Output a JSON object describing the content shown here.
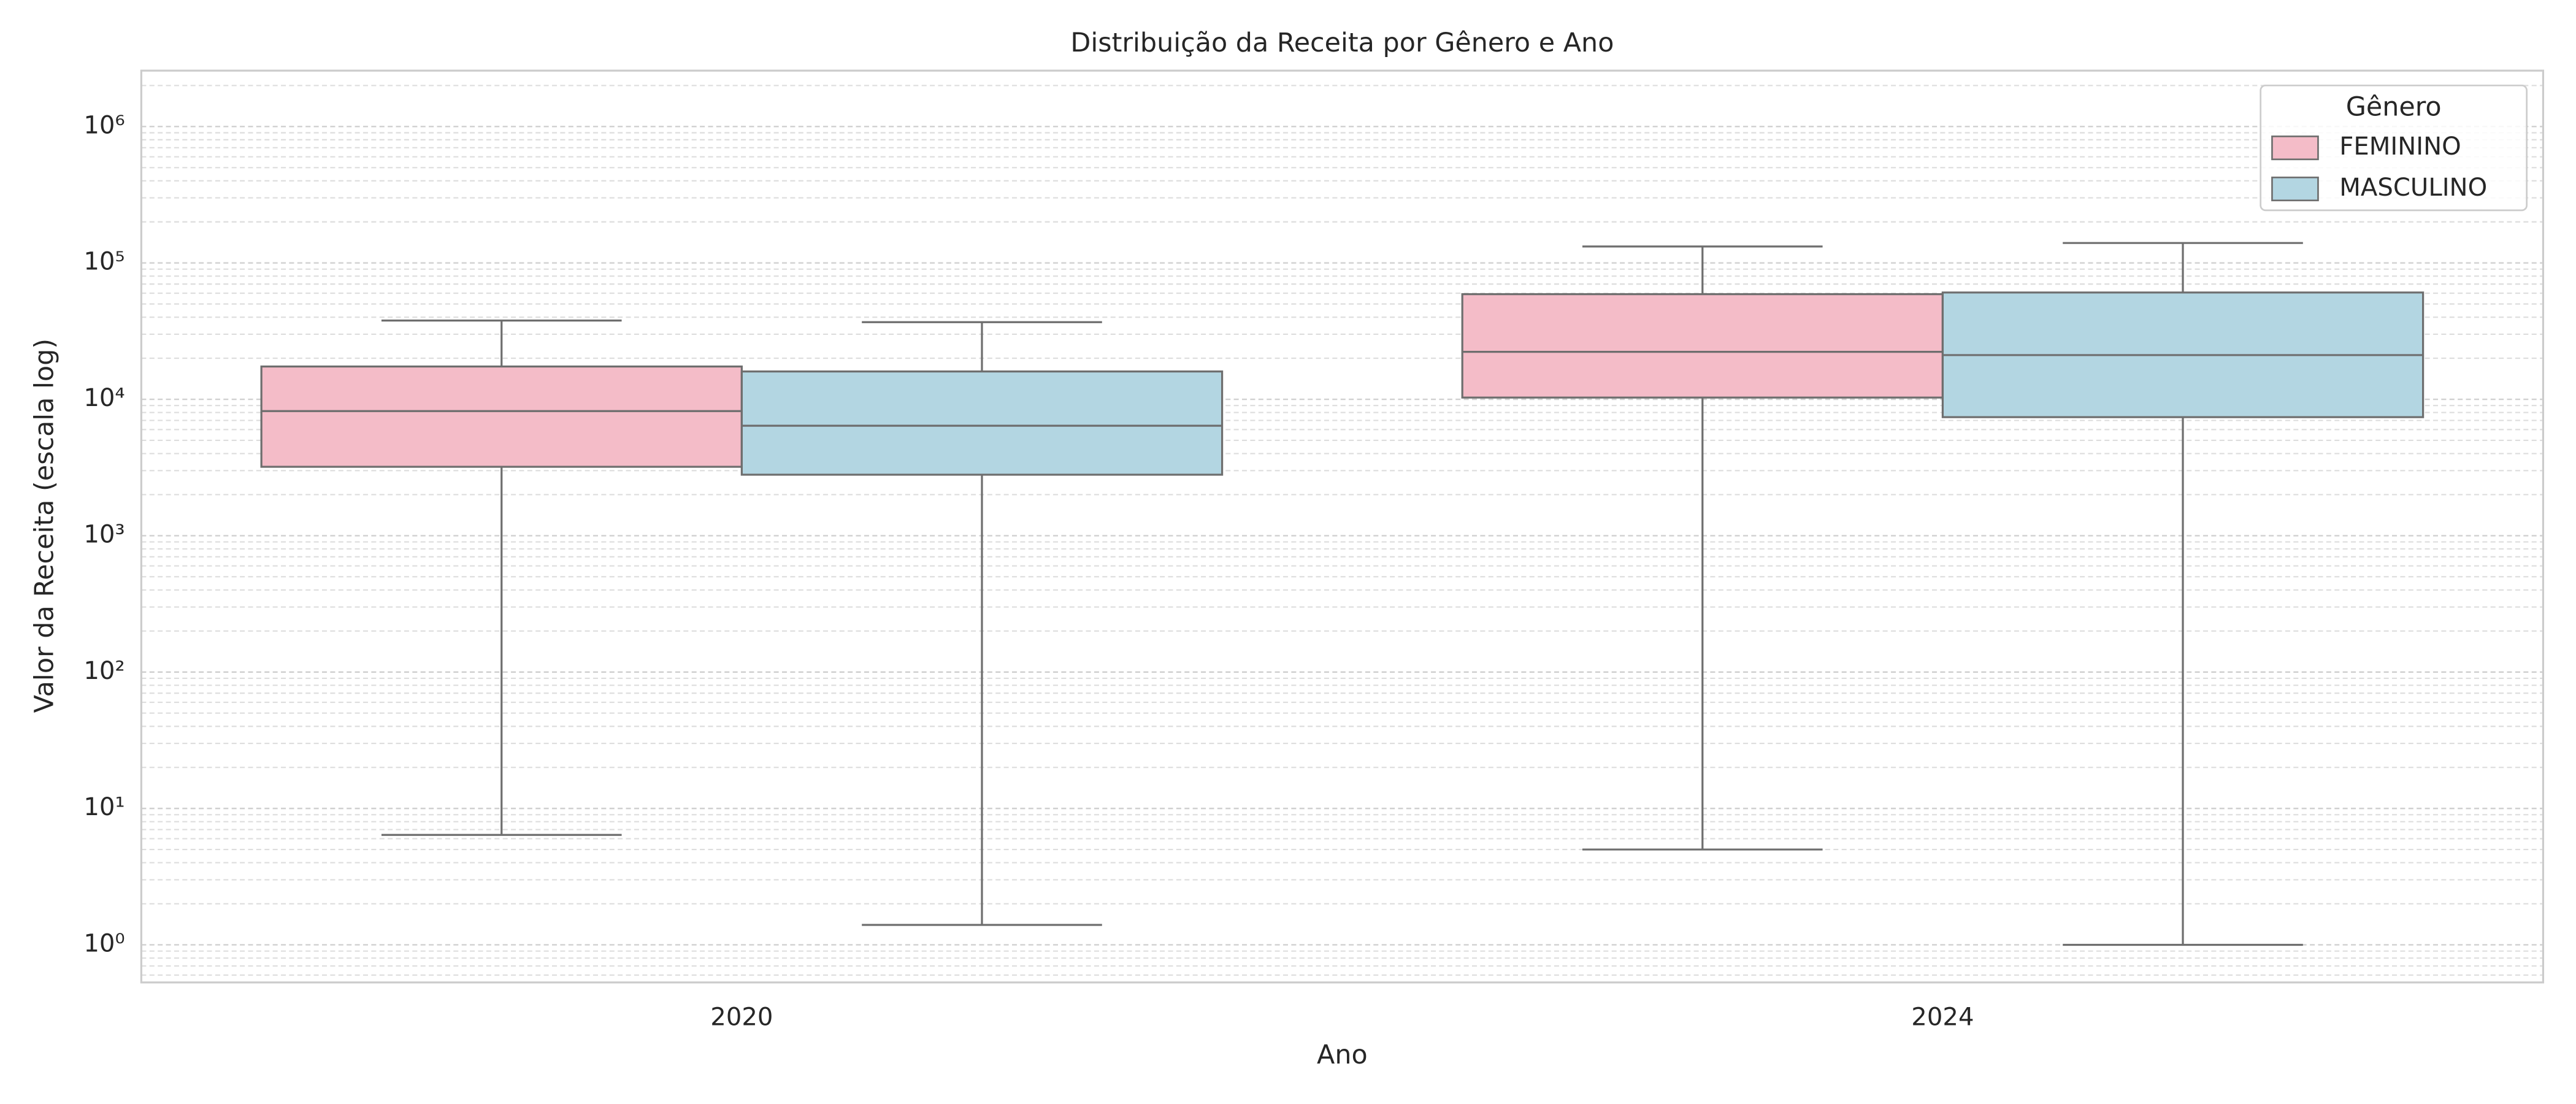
{
  "chart_data": {
    "type": "box",
    "title": "Distribuição da Receita por Gênero e Ano",
    "x_label": "Ano",
    "y_label": "Valor da Receita (escala log)",
    "categories": [
      "2020",
      "2024"
    ],
    "legend_title": "Gênero",
    "legend_loc": "upper right",
    "log_scale": true,
    "grid": true,
    "series": [
      {
        "name": "FEMININO",
        "color": "#f4bcc8",
        "whisker_low": [
          6.4,
          5
        ],
        "q1": [
          3200,
          10300
        ],
        "median": [
          8200,
          22300
        ],
        "q3": [
          17400,
          59000
        ],
        "whisker_high": [
          37800,
          132000
        ]
      },
      {
        "name": "MASCULINO",
        "color": "#b3d6e2",
        "whisker_low": [
          1.4,
          1
        ],
        "q1": [
          2800,
          7400
        ],
        "median": [
          6400,
          21100
        ],
        "q3": [
          16000,
          60700
        ],
        "whisker_high": [
          36800,
          140000
        ]
      }
    ],
    "ylim": [
      0.53,
      2570000
    ],
    "yticks": [
      {
        "value": 1,
        "label": "10⁰"
      },
      {
        "value": 10,
        "label": "10¹"
      },
      {
        "value": 100,
        "label": "10²"
      },
      {
        "value": 1000,
        "label": "10³"
      },
      {
        "value": 10000,
        "label": "10⁴"
      },
      {
        "value": 100000,
        "label": "10⁵"
      },
      {
        "value": 1000000,
        "label": "10⁶"
      }
    ],
    "yticks_minor": [
      0.6,
      0.7,
      0.8,
      0.9,
      2,
      3,
      4,
      5,
      6,
      7,
      8,
      9,
      20,
      30,
      40,
      50,
      60,
      70,
      80,
      90,
      200,
      300,
      400,
      500,
      600,
      700,
      800,
      900,
      2000,
      3000,
      4000,
      5000,
      6000,
      7000,
      8000,
      9000,
      20000,
      30000,
      40000,
      50000,
      60000,
      70000,
      80000,
      90000,
      200000,
      300000,
      400000,
      500000,
      600000,
      700000,
      800000,
      900000,
      2000000
    ]
  }
}
